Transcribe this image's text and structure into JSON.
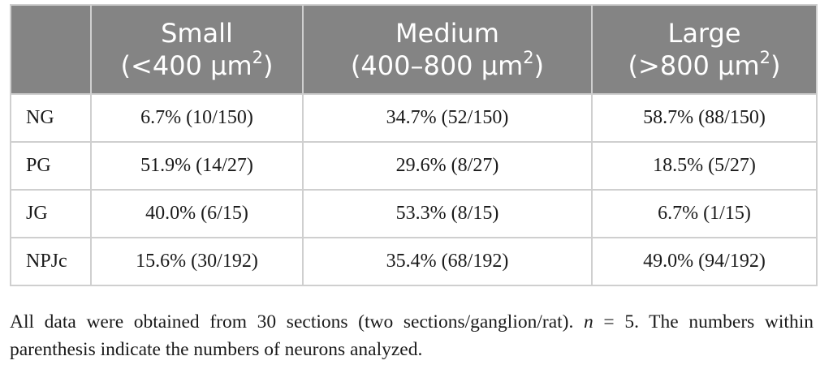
{
  "table": {
    "headers": [
      {
        "line1": "",
        "line2": "",
        "sup": "",
        "line2_end": ""
      },
      {
        "line1": "Small",
        "line2": "(<400 μm",
        "sup": "2",
        "line2_end": ")"
      },
      {
        "line1": "Medium",
        "line2": "(400–800 μm",
        "sup": "2",
        "line2_end": ")"
      },
      {
        "line1": "Large",
        "line2": "(>800 μm",
        "sup": "2",
        "line2_end": ")"
      }
    ],
    "rows": [
      {
        "label": "NG",
        "cells": [
          "6.7% (10/150)",
          "34.7% (52/150)",
          "58.7% (88/150)"
        ]
      },
      {
        "label": "PG",
        "cells": [
          "51.9% (14/27)",
          "29.6% (8/27)",
          "18.5% (5/27)"
        ]
      },
      {
        "label": "JG",
        "cells": [
          "40.0% (6/15)",
          "53.3% (8/15)",
          "6.7% (1/15)"
        ]
      },
      {
        "label": "NPJc",
        "cells": [
          "15.6% (30/192)",
          "35.4% (68/192)",
          "49.0% (94/192)"
        ]
      }
    ]
  },
  "footnote": {
    "before_italic": "All data were obtained from 30 sections (two sections/ganglion/rat). ",
    "italic": "n",
    "after_italic": " = 5. The numbers within parenthesis indicate the numbers of neurons analyzed."
  },
  "colors": {
    "header_background": "#848484",
    "header_text": "#ffffff",
    "grid_lines": "#cfcfcf",
    "body_text": "#1a1a1a"
  }
}
